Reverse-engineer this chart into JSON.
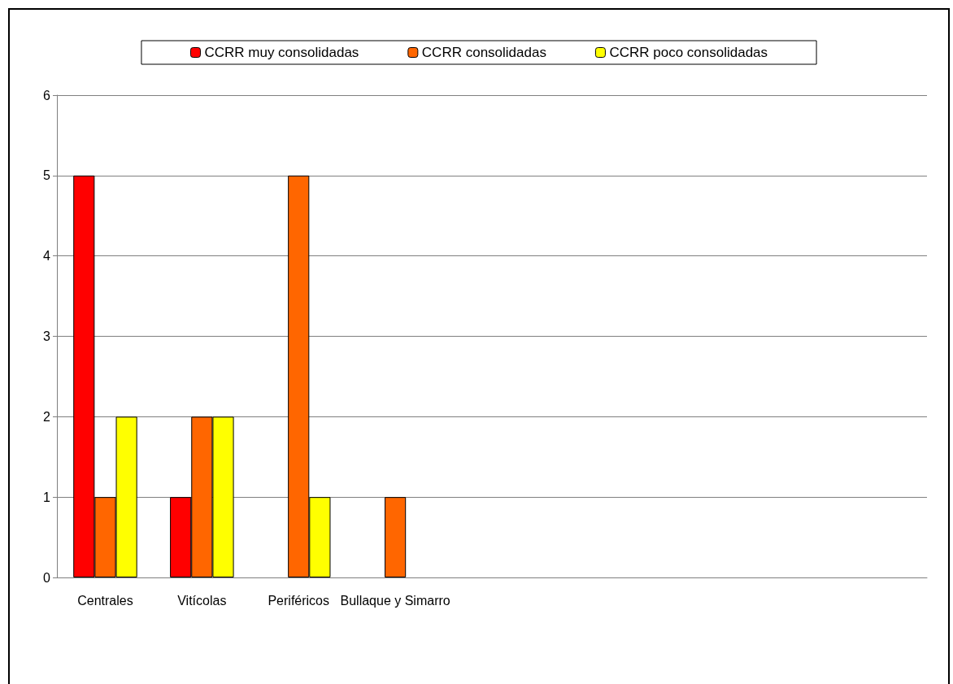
{
  "chart_data": {
    "type": "bar",
    "categories": [
      "Centrales",
      "Vitícolas",
      "Periféricos",
      "Bullaque y Simarro",
      null,
      null,
      null,
      null,
      null
    ],
    "series": [
      {
        "name": "CCRR muy consolidadas",
        "color": "#ff0000",
        "values": [
          5,
          1,
          0,
          0,
          null,
          null,
          null,
          null,
          null
        ]
      },
      {
        "name": "CCRR consolidadas",
        "color": "#ff6600",
        "values": [
          1,
          2,
          5,
          1,
          null,
          null,
          null,
          null,
          null
        ]
      },
      {
        "name": "CCRR poco consolidadas",
        "color": "#ffff00",
        "values": [
          2,
          2,
          1,
          0,
          null,
          null,
          null,
          null,
          null
        ]
      }
    ],
    "ylim": [
      0,
      6
    ],
    "yticks": [
      0,
      1,
      2,
      3,
      4,
      5,
      6
    ],
    "grid": "y",
    "legend": "top"
  }
}
